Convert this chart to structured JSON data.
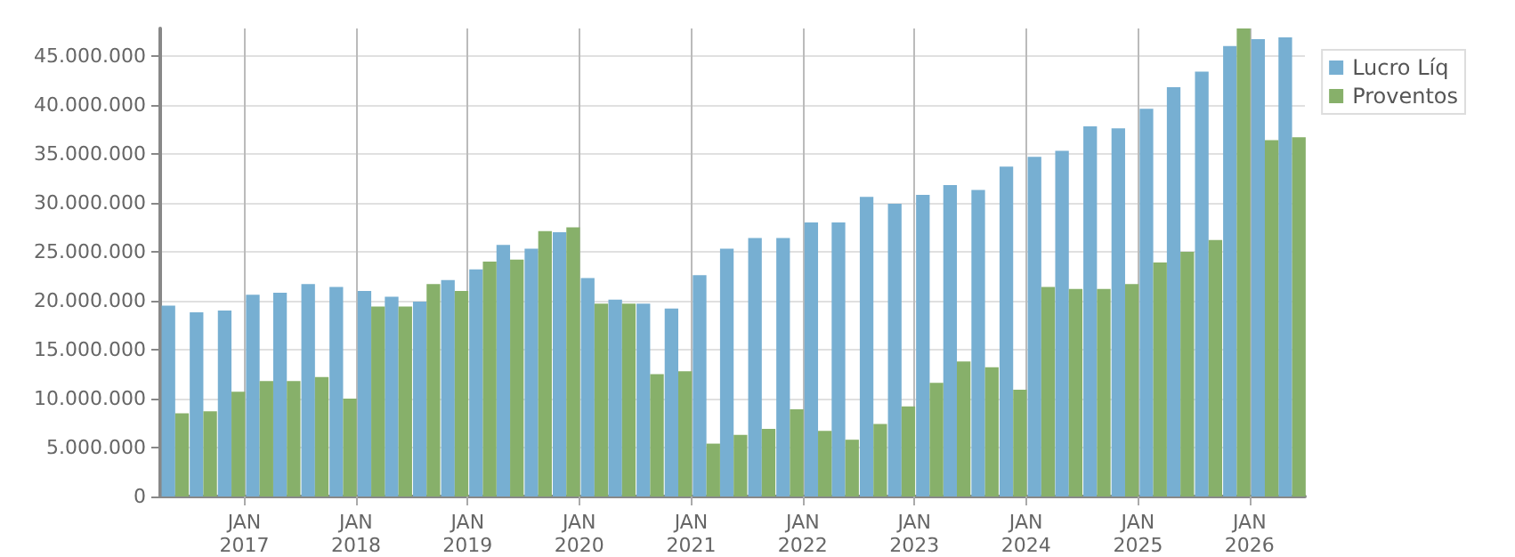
{
  "chart_data": {
    "type": "bar",
    "x": [
      "2016-05-20",
      "2016-08-20",
      "2016-11-20",
      "2017-02-20",
      "2017-05-20",
      "2017-08-20",
      "2017-11-20",
      "2018-02-20",
      "2018-05-20",
      "2018-08-20",
      "2018-11-20",
      "2019-02-20",
      "2019-05-20",
      "2019-08-20",
      "2019-11-20",
      "2020-02-20",
      "2020-05-20",
      "2020-08-20",
      "2020-11-20",
      "2021-02-20",
      "2021-05-20",
      "2021-08-20",
      "2021-11-20",
      "2022-02-20",
      "2022-05-20",
      "2022-08-20",
      "2022-11-20",
      "2023-02-20",
      "2023-05-20",
      "2023-08-20",
      "2023-11-20",
      "2024-02-20",
      "2024-05-20",
      "2024-08-20",
      "2024-11-20",
      "2025-02-20",
      "2025-05-20",
      "2025-08-20",
      "2025-11-20",
      "2026-02-20",
      "2026-05-20"
    ],
    "series": [
      {
        "name": "Lucro Líq",
        "color": "#77afd2",
        "values": [
          19500000,
          18800000,
          19000000,
          20600000,
          20800000,
          21700000,
          21400000,
          21000000,
          20400000,
          19900000,
          22100000,
          23200000,
          25700000,
          25300000,
          27000000,
          22300000,
          20100000,
          19700000,
          19200000,
          22600000,
          25300000,
          26400000,
          26400000,
          28000000,
          28000000,
          30600000,
          29900000,
          30800000,
          31800000,
          31300000,
          33700000,
          34700000,
          35300000,
          37800000,
          37600000,
          39600000,
          41800000,
          43400000,
          46000000,
          46700000,
          46900000
        ]
      },
      {
        "name": "Proventos",
        "color": "#87b06a",
        "values": [
          8500000,
          8700000,
          10700000,
          11800000,
          11800000,
          12200000,
          10000000,
          19400000,
          19400000,
          21700000,
          21000000,
          24000000,
          24200000,
          27100000,
          27500000,
          19700000,
          19700000,
          12500000,
          12800000,
          5400000,
          6300000,
          6900000,
          8900000,
          6700000,
          5800000,
          7400000,
          9200000,
          11600000,
          13800000,
          13200000,
          10900000,
          21400000,
          21200000,
          21200000,
          21700000,
          23900000,
          25000000,
          26200000,
          47800000,
          36400000,
          36700000
        ]
      }
    ],
    "xlim": [
      "2016-04-01",
      "2026-07-01"
    ],
    "xticks": [
      {
        "value": "2017-01-01",
        "label": "JAN\n2017"
      },
      {
        "value": "2018-01-01",
        "label": "JAN\n2018"
      },
      {
        "value": "2019-01-01",
        "label": "JAN\n2019"
      },
      {
        "value": "2020-01-01",
        "label": "JAN\n2020"
      },
      {
        "value": "2021-01-01",
        "label": "JAN\n2021"
      },
      {
        "value": "2022-01-01",
        "label": "JAN\n2022"
      },
      {
        "value": "2023-01-01",
        "label": "JAN\n2023"
      },
      {
        "value": "2024-01-01",
        "label": "JAN\n2024"
      },
      {
        "value": "2025-01-01",
        "label": "JAN\n2025"
      },
      {
        "value": "2026-01-01",
        "label": "JAN\n2026"
      }
    ],
    "ylim": [
      0,
      47800000
    ],
    "yticks": [
      0,
      {
        "value": 5000000,
        "label": "5.000.000"
      },
      {
        "value": 10000000,
        "label": "10.000.000"
      },
      {
        "value": 15000000,
        "label": "15.000.000"
      },
      {
        "value": 20000000,
        "label": "20.000.000"
      },
      {
        "value": 25000000,
        "label": "25.000.000"
      },
      {
        "value": 30000000,
        "label": "30.000.000"
      },
      {
        "value": 35000000,
        "label": "35.000.000"
      },
      {
        "value": 40000000,
        "label": "40.000.000"
      },
      {
        "value": 45000000,
        "label": "45.000.000"
      }
    ],
    "grid": true,
    "legend": "top right"
  }
}
